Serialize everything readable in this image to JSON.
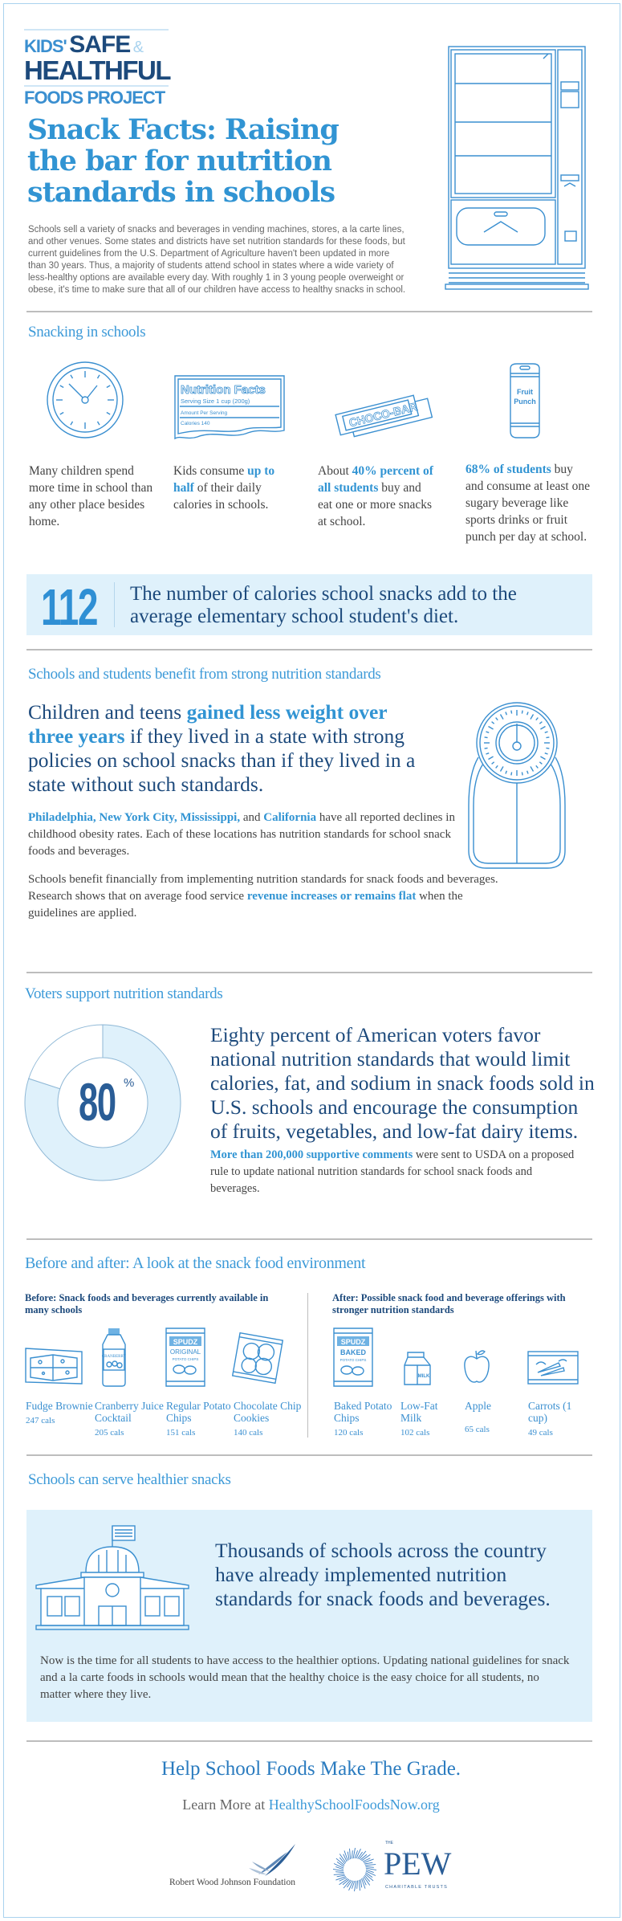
{
  "logo": {
    "kids": "KIDS'",
    "safe": "SAFE",
    "amp": "&",
    "healthful": "HEALTHFUL",
    "foods_project": "FOODS PROJECT"
  },
  "title_lines": [
    "Snack Facts: Raising",
    "the bar for nutrition",
    "standards in schools"
  ],
  "intro": "Schools sell a variety of snacks and beverages in vending machines, stores, a la carte lines, and other venues. Some states and districts have set nutrition standards for these foods, but current guidelines from the U.S. Department of Agriculture haven't been updated in more than 30 years. Thus, a majority of students attend school in states where a wide variety of less-healthy options are available every day. With roughly 1 in 3 young people overweight or obese, it's time to make sure that all of our children have access to healthy snacks in school.",
  "snacking": {
    "heading": "Snacking in schools",
    "icons": [
      "clock-icon",
      "nutrition-label-icon",
      "candy-bar-icon",
      "soda-can-icon"
    ],
    "nutrition_label": {
      "title": "Nutrition Facts",
      "serving": "Serving Size 1 cup (200g)",
      "amount": "Amount Per Serving",
      "calories": "Calories 140"
    },
    "bar_label": "CHOCO-BAR",
    "can_label": [
      "Fruit",
      "Punch"
    ],
    "items": [
      [
        "Many children spend more time in school than any other place besides home.",
        "",
        ""
      ],
      [
        "Kids consume ",
        "up to half",
        " of their daily calories in schools."
      ],
      [
        "About ",
        "40% percent of all students",
        " buy and eat one or more snacks at school."
      ],
      [
        "",
        "68% of students",
        " buy and consume at least one sugary beverage like sports drinks or fruit punch per day at school."
      ]
    ]
  },
  "callout": {
    "number": "112",
    "text": "The number of calories school snacks add to the average elementary school student's diet."
  },
  "benefits": {
    "heading": "Schools and students benefit from strong nutrition standards",
    "big": [
      "Children and teens ",
      "gained less weight over three years",
      " if they lived in a state with strong policies on school snacks than if they lived in a state without such standards."
    ],
    "para1": [
      "Philadelphia, New York City, Mississippi,",
      " and ",
      "California",
      " have all reported declines in childhood obesity rates. Each of these locations has nutrition standards for school snack foods and beverages."
    ],
    "para2": [
      "Schools benefit financially from implementing nutrition standards for snack foods and beverages. Research shows that on average food service ",
      "revenue increases or remains flat",
      " when the guidelines are applied."
    ]
  },
  "voters": {
    "heading": "Voters support nutrition standards",
    "percent_value": 80,
    "percent_label": "80",
    "percent_sign": "%",
    "colors": {
      "filled": "#dff1fb",
      "stroke": "#8fb8d6"
    },
    "big": "Eighty percent of American voters favor national nutrition standards that would limit calories, fat, and sodium in snack foods sold in U.S. schools and encourage the consumption of fruits, vegetables, and low-fat dairy items.",
    "para": [
      "More than 200,000 supportive comments",
      " were sent to USDA on a proposed rule to update national nutrition standards for school snack foods and beverages."
    ]
  },
  "before_after": {
    "heading": "Before and after: A look at the snack food environment",
    "before": {
      "subhead": "Before: Snack foods and beverages currently available in many schools",
      "items": [
        {
          "name": "Fudge Brownie",
          "cals": "247 cals",
          "icon": "brownie-icon"
        },
        {
          "name": "Cranberry Juice Cocktail",
          "cals": "205 cals",
          "icon": "juice-bottle-icon"
        },
        {
          "name": "Regular Potato Chips",
          "cals": "151 cals",
          "icon": "chips-bag-icon"
        },
        {
          "name": "Chocolate Chip Cookies",
          "cals": "140 cals",
          "icon": "cookies-bag-icon"
        }
      ]
    },
    "after": {
      "subhead": "After: Possible snack food and beverage offerings with stronger nutrition standards",
      "items": [
        {
          "name": "Baked Potato Chips",
          "cals": "120 cals",
          "icon": "baked-chips-bag-icon"
        },
        {
          "name": "Low-Fat Milk",
          "cals": "102 cals",
          "icon": "milk-carton-icon"
        },
        {
          "name": "Apple",
          "cals": "65 cals",
          "icon": "apple-icon"
        },
        {
          "name": "Carrots (1 cup)",
          "cals": "49 cals",
          "icon": "carrots-bag-icon"
        }
      ]
    },
    "package_text": {
      "brand": "SPUDZ",
      "original": "ORIGINAL",
      "baked": "BAKED",
      "chips": "POTATO CHIPS",
      "milk": "MILK",
      "cranberry": "CRANBERRY"
    }
  },
  "healthier": {
    "heading": "Schools can serve healthier snacks",
    "big": "Thousands of schools across the country have already implemented nutrition standards for snack foods and beverages.",
    "para": "Now is the time for all students to have access to the healthier options. Updating national guidelines for snack and a la carte foods in schools would mean that the healthy choice is the easy choice for all students, no matter where they live."
  },
  "footer": {
    "cta": "Help School Foods Make The Grade.",
    "learn_prefix": "Learn More at ",
    "url": "HealthySchoolFoodsNow.org",
    "rwjf": "Robert Wood Johnson Foundation",
    "pew": {
      "the": "THE",
      "name": "PEW",
      "sub": "CHARITABLE TRUSTS"
    }
  }
}
